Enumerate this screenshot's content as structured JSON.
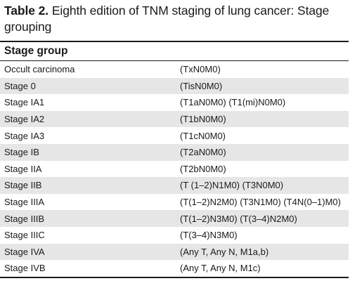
{
  "caption": {
    "label": "Table 2.",
    "text": " Eighth edition of TNM staging of lung cancer: Stage grouping"
  },
  "table": {
    "header": "Stage group",
    "rows": [
      {
        "stage": "Occult carcinoma",
        "definition": "(TxN0M0)"
      },
      {
        "stage": "Stage 0",
        "definition": "(TisN0M0)"
      },
      {
        "stage": "Stage IA1",
        "definition": "(T1aN0M0) (T1(mi)N0M0)"
      },
      {
        "stage": "Stage IA2",
        "definition": "(T1bN0M0)"
      },
      {
        "stage": "Stage IA3",
        "definition": "(T1cN0M0)"
      },
      {
        "stage": "Stage IB",
        "definition": "(T2aN0M0)"
      },
      {
        "stage": "Stage IIA",
        "definition": "(T2bN0M0)"
      },
      {
        "stage": "Stage IIB",
        "definition": "(T (1–2)N1M0) (T3N0M0)"
      },
      {
        "stage": "Stage IIIA",
        "definition": "(T(1–2)N2M0) (T3N1M0) (T4N(0–1)M0)"
      },
      {
        "stage": "Stage IIIB",
        "definition": "(T(1–2)N3M0) (T(3–4)N2M0)"
      },
      {
        "stage": "Stage IIIC",
        "definition": "(T(3–4)N3M0)"
      },
      {
        "stage": "Stage IVA",
        "definition": "(Any T, Any N, M1a,b)"
      },
      {
        "stage": "Stage IVB",
        "definition": "(Any T, Any N, M1c)"
      }
    ]
  }
}
